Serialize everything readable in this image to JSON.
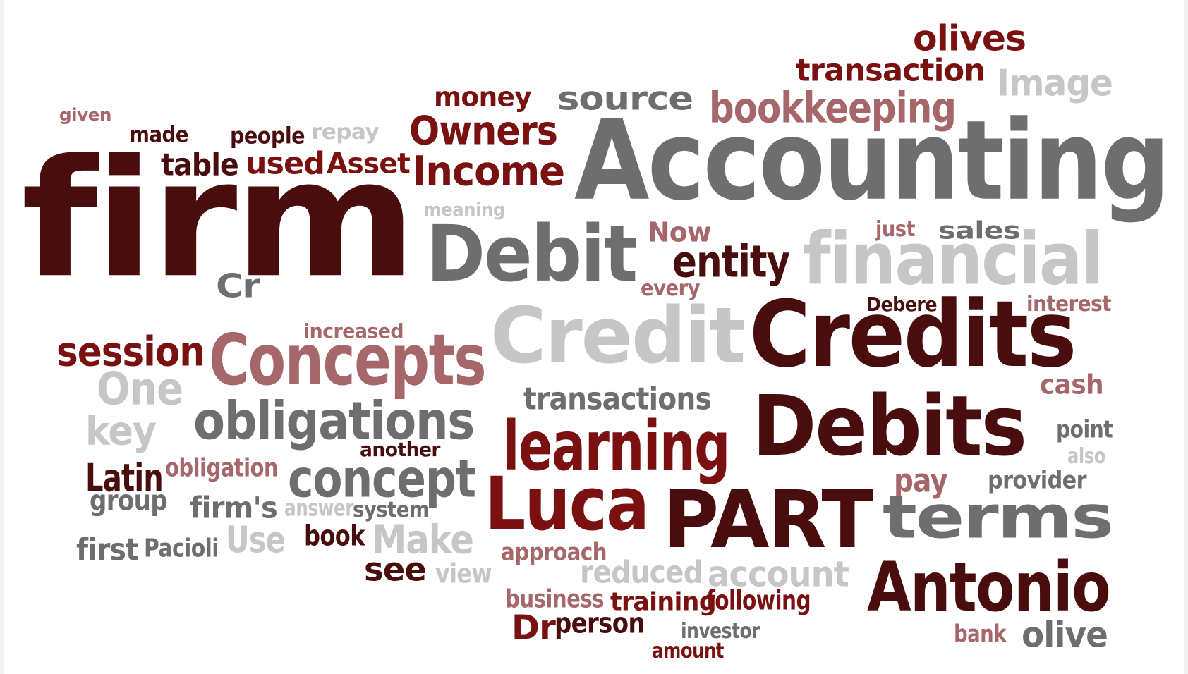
{
  "palette": {
    "maroon": "#4a0d0d",
    "dark_red": "#7a1010",
    "mauve": "#a6676b",
    "gray": "#6e6e6e",
    "light_gray": "#c6c6c6"
  },
  "words": [
    {
      "text": "olives",
      "color": "dark_red"
    },
    {
      "text": "transaction",
      "color": "dark_red"
    },
    {
      "text": "Image",
      "color": "light_gray"
    },
    {
      "text": "money",
      "color": "dark_red"
    },
    {
      "text": "source",
      "color": "gray"
    },
    {
      "text": "bookkeeping",
      "color": "mauve"
    },
    {
      "text": "given",
      "color": "mauve"
    },
    {
      "text": "made",
      "color": "maroon"
    },
    {
      "text": "people",
      "color": "maroon"
    },
    {
      "text": "repay",
      "color": "light_gray"
    },
    {
      "text": "Owners",
      "color": "dark_red"
    },
    {
      "text": "Accounting",
      "color": "gray"
    },
    {
      "text": "firm",
      "color": "maroon"
    },
    {
      "text": "table",
      "color": "maroon"
    },
    {
      "text": "used",
      "color": "dark_red"
    },
    {
      "text": "Asset",
      "color": "dark_red"
    },
    {
      "text": "Income",
      "color": "dark_red"
    },
    {
      "text": "meaning",
      "color": "light_gray"
    },
    {
      "text": "Now",
      "color": "mauve"
    },
    {
      "text": "just",
      "color": "mauve"
    },
    {
      "text": "sales",
      "color": "gray"
    },
    {
      "text": "Debit",
      "color": "gray"
    },
    {
      "text": "entity",
      "color": "maroon"
    },
    {
      "text": "financial",
      "color": "light_gray"
    },
    {
      "text": "Cr",
      "color": "gray"
    },
    {
      "text": "every",
      "color": "mauve"
    },
    {
      "text": "Debere",
      "color": "maroon"
    },
    {
      "text": "interest",
      "color": "mauve"
    },
    {
      "text": "increased",
      "color": "mauve"
    },
    {
      "text": "Credit",
      "color": "light_gray"
    },
    {
      "text": "Credits",
      "color": "maroon"
    },
    {
      "text": "session",
      "color": "dark_red"
    },
    {
      "text": "Concepts",
      "color": "mauve"
    },
    {
      "text": "One",
      "color": "light_gray"
    },
    {
      "text": "cash",
      "color": "mauve"
    },
    {
      "text": "transactions",
      "color": "gray"
    },
    {
      "text": "obligations",
      "color": "gray"
    },
    {
      "text": "key",
      "color": "light_gray"
    },
    {
      "text": "Debits",
      "color": "maroon"
    },
    {
      "text": "learning",
      "color": "dark_red"
    },
    {
      "text": "point",
      "color": "gray"
    },
    {
      "text": "another",
      "color": "maroon"
    },
    {
      "text": "also",
      "color": "light_gray"
    },
    {
      "text": "Latin",
      "color": "maroon"
    },
    {
      "text": "obligation",
      "color": "mauve"
    },
    {
      "text": "concept",
      "color": "gray"
    },
    {
      "text": "pay",
      "color": "mauve"
    },
    {
      "text": "provider",
      "color": "gray"
    },
    {
      "text": "group",
      "color": "gray"
    },
    {
      "text": "Luca",
      "color": "dark_red"
    },
    {
      "text": "PART",
      "color": "maroon"
    },
    {
      "text": "terms",
      "color": "gray"
    },
    {
      "text": "firm's",
      "color": "gray"
    },
    {
      "text": "answer",
      "color": "light_gray"
    },
    {
      "text": "system",
      "color": "gray"
    },
    {
      "text": "Use",
      "color": "light_gray"
    },
    {
      "text": "book",
      "color": "maroon"
    },
    {
      "text": "Make",
      "color": "light_gray"
    },
    {
      "text": "first",
      "color": "gray"
    },
    {
      "text": "Pacioli",
      "color": "gray"
    },
    {
      "text": "approach",
      "color": "mauve"
    },
    {
      "text": "see",
      "color": "maroon"
    },
    {
      "text": "view",
      "color": "light_gray"
    },
    {
      "text": "reduced",
      "color": "light_gray"
    },
    {
      "text": "account",
      "color": "light_gray"
    },
    {
      "text": "Antonio",
      "color": "maroon"
    },
    {
      "text": "business",
      "color": "mauve"
    },
    {
      "text": "training",
      "color": "dark_red"
    },
    {
      "text": "following",
      "color": "dark_red"
    },
    {
      "text": "Dr",
      "color": "dark_red"
    },
    {
      "text": "person",
      "color": "maroon"
    },
    {
      "text": "investor",
      "color": "gray"
    },
    {
      "text": "bank",
      "color": "mauve"
    },
    {
      "text": "olive",
      "color": "gray"
    },
    {
      "text": "amount",
      "color": "dark_red"
    }
  ]
}
